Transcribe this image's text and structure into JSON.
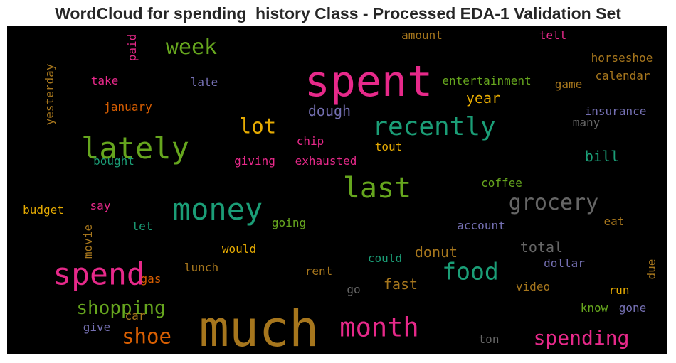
{
  "chart_data": {
    "type": "wordcloud",
    "title": "WordCloud for spending_history Class - Processed EDA-1 Validation Set",
    "background": "#000000",
    "words": [
      {
        "text": "much",
        "weight": 1.0,
        "color": "#a6761d"
      },
      {
        "text": "spent",
        "weight": 0.9,
        "color": "#e7298a"
      },
      {
        "text": "spend",
        "weight": 0.62,
        "color": "#e7298a"
      },
      {
        "text": "lately",
        "weight": 0.62,
        "color": "#66a61e"
      },
      {
        "text": "money",
        "weight": 0.6,
        "color": "#1b9e77"
      },
      {
        "text": "last",
        "weight": 0.56,
        "color": "#66a61e"
      },
      {
        "text": "recently",
        "weight": 0.51,
        "color": "#1b9e77"
      },
      {
        "text": "month",
        "weight": 0.5,
        "color": "#e7298a"
      },
      {
        "text": "food",
        "weight": 0.47,
        "color": "#1b9e77"
      },
      {
        "text": "week",
        "weight": 0.44,
        "color": "#66a61e"
      },
      {
        "text": "grocery",
        "weight": 0.44,
        "color": "#666666"
      },
      {
        "text": "lot",
        "weight": 0.41,
        "color": "#e6ab02"
      },
      {
        "text": "shoe",
        "weight": 0.4,
        "color": "#d95f02"
      },
      {
        "text": "spending",
        "weight": 0.4,
        "color": "#e7298a"
      },
      {
        "text": "shopping",
        "weight": 0.37,
        "color": "#66a61e"
      },
      {
        "text": "fast",
        "weight": 0.27,
        "color": "#a6761d"
      },
      {
        "text": "donut",
        "weight": 0.27,
        "color": "#a6761d"
      },
      {
        "text": "dough",
        "weight": 0.26,
        "color": "#7570b3"
      },
      {
        "text": "year",
        "weight": 0.27,
        "color": "#e6ab02"
      },
      {
        "text": "total",
        "weight": 0.26,
        "color": "#666666"
      },
      {
        "text": "bill",
        "weight": 0.26,
        "color": "#1b9e77"
      },
      {
        "text": "entertainment",
        "weight": 0.22,
        "color": "#66a61e"
      },
      {
        "text": "insurance",
        "weight": 0.21,
        "color": "#7570b3"
      },
      {
        "text": "horseshoe",
        "weight": 0.2,
        "color": "#a6761d"
      },
      {
        "text": "calendar",
        "weight": 0.2,
        "color": "#a6761d"
      },
      {
        "text": "yesterday",
        "weight": 0.2,
        "color": "#a6761d"
      },
      {
        "text": "amount",
        "weight": 0.2,
        "color": "#a6761d"
      },
      {
        "text": "tell",
        "weight": 0.2,
        "color": "#e7298a"
      },
      {
        "text": "paid",
        "weight": 0.2,
        "color": "#e7298a"
      },
      {
        "text": "take",
        "weight": 0.2,
        "color": "#e7298a"
      },
      {
        "text": "late",
        "weight": 0.2,
        "color": "#7570b3"
      },
      {
        "text": "game",
        "weight": 0.2,
        "color": "#a6761d"
      },
      {
        "text": "january",
        "weight": 0.2,
        "color": "#d95f02"
      },
      {
        "text": "many",
        "weight": 0.2,
        "color": "#666666"
      },
      {
        "text": "chip",
        "weight": 0.2,
        "color": "#e7298a"
      },
      {
        "text": "tout",
        "weight": 0.2,
        "color": "#e6ab02"
      },
      {
        "text": "bought",
        "weight": 0.2,
        "color": "#1b9e77"
      },
      {
        "text": "giving",
        "weight": 0.2,
        "color": "#e7298a"
      },
      {
        "text": "exhausted",
        "weight": 0.2,
        "color": "#e7298a"
      },
      {
        "text": "coffee",
        "weight": 0.2,
        "color": "#66a61e"
      },
      {
        "text": "budget",
        "weight": 0.2,
        "color": "#e6ab02"
      },
      {
        "text": "say",
        "weight": 0.2,
        "color": "#e7298a"
      },
      {
        "text": "let",
        "weight": 0.2,
        "color": "#1b9e77"
      },
      {
        "text": "going",
        "weight": 0.2,
        "color": "#66a61e"
      },
      {
        "text": "account",
        "weight": 0.2,
        "color": "#7570b3"
      },
      {
        "text": "eat",
        "weight": 0.2,
        "color": "#a6761d"
      },
      {
        "text": "movie",
        "weight": 0.2,
        "color": "#a6761d"
      },
      {
        "text": "would",
        "weight": 0.2,
        "color": "#e6ab02"
      },
      {
        "text": "could",
        "weight": 0.2,
        "color": "#1b9e77"
      },
      {
        "text": "dollar",
        "weight": 0.2,
        "color": "#7570b3"
      },
      {
        "text": "due",
        "weight": 0.2,
        "color": "#a6761d"
      },
      {
        "text": "lunch",
        "weight": 0.2,
        "color": "#a6761d"
      },
      {
        "text": "rent",
        "weight": 0.2,
        "color": "#a6761d"
      },
      {
        "text": "gas",
        "weight": 0.2,
        "color": "#d95f02"
      },
      {
        "text": "go",
        "weight": 0.2,
        "color": "#666666"
      },
      {
        "text": "video",
        "weight": 0.2,
        "color": "#a6761d"
      },
      {
        "text": "run",
        "weight": 0.2,
        "color": "#e6ab02"
      },
      {
        "text": "car",
        "weight": 0.2,
        "color": "#a6761d"
      },
      {
        "text": "know",
        "weight": 0.2,
        "color": "#66a61e"
      },
      {
        "text": "gone",
        "weight": 0.2,
        "color": "#7570b3"
      },
      {
        "text": "give",
        "weight": 0.2,
        "color": "#7570b3"
      },
      {
        "text": "ton",
        "weight": 0.2,
        "color": "#666666"
      }
    ]
  }
}
